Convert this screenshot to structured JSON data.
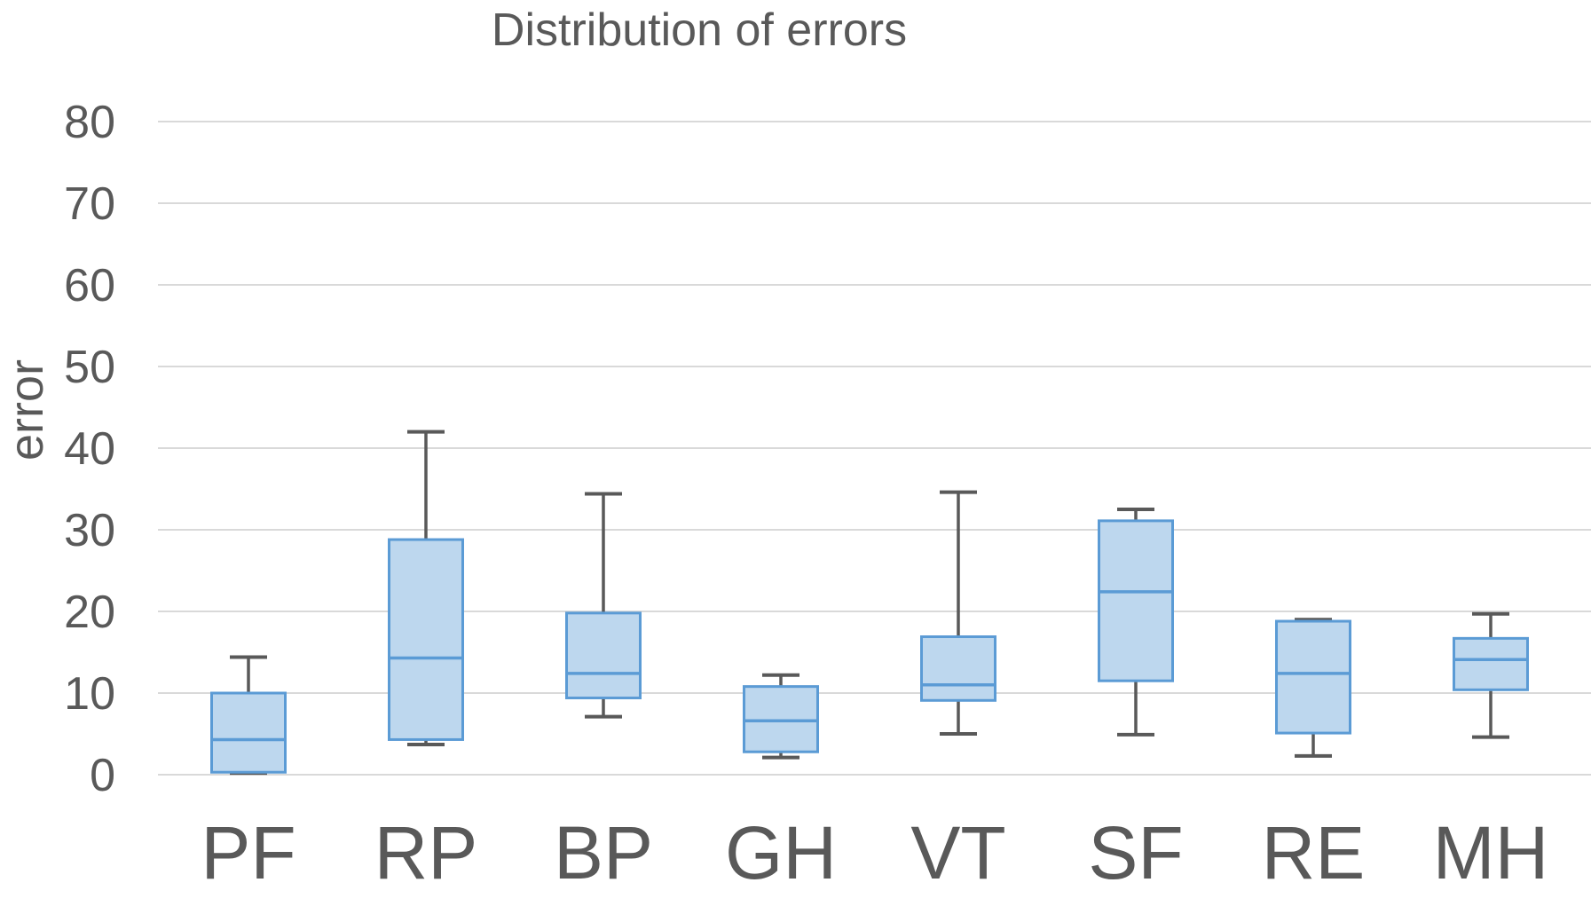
{
  "chart": {
    "title": "Distribution of errors",
    "y_axis_title": "error"
  },
  "chart_data": {
    "type": "boxplot",
    "title": "Distribution of errors",
    "xlabel": "",
    "ylabel": "error",
    "ylim": [
      0,
      80
    ],
    "yticks": [
      80,
      70,
      60,
      50,
      40,
      30,
      20,
      10,
      0
    ],
    "grid": true,
    "legend": false,
    "categories": [
      "PF",
      "RP",
      "BP",
      "GH",
      "VT",
      "SF",
      "RE",
      "MH"
    ],
    "series": [
      {
        "category": "PF",
        "whisker_low": 0.2,
        "q1": 0.3,
        "median": 4.3,
        "q3": 10.0,
        "whisker_high": 14.4
      },
      {
        "category": "RP",
        "whisker_low": 3.7,
        "q1": 4.3,
        "median": 14.3,
        "q3": 28.8,
        "whisker_high": 42.0
      },
      {
        "category": "BP",
        "whisker_low": 7.1,
        "q1": 9.4,
        "median": 12.4,
        "q3": 19.8,
        "whisker_high": 34.4
      },
      {
        "category": "GH",
        "whisker_low": 2.1,
        "q1": 2.8,
        "median": 6.6,
        "q3": 10.8,
        "whisker_high": 12.2
      },
      {
        "category": "VT",
        "whisker_low": 5.0,
        "q1": 9.1,
        "median": 11.0,
        "q3": 16.9,
        "whisker_high": 34.6
      },
      {
        "category": "SF",
        "whisker_low": 4.9,
        "q1": 11.5,
        "median": 22.4,
        "q3": 31.1,
        "whisker_high": 32.5
      },
      {
        "category": "RE",
        "whisker_low": 2.3,
        "q1": 5.1,
        "median": 12.4,
        "q3": 18.8,
        "whisker_high": 19.0
      },
      {
        "category": "MH",
        "whisker_low": 4.6,
        "q1": 10.4,
        "median": 14.1,
        "q3": 16.7,
        "whisker_high": 19.7
      }
    ],
    "colors": {
      "box_fill": "#BDD7EE",
      "box_border": "#5B9BD5",
      "median_line": "#5B9BD5",
      "whisker": "#595959",
      "gridline": "#D9D9D9",
      "text": "#595959",
      "background": "#FFFFFF"
    }
  }
}
